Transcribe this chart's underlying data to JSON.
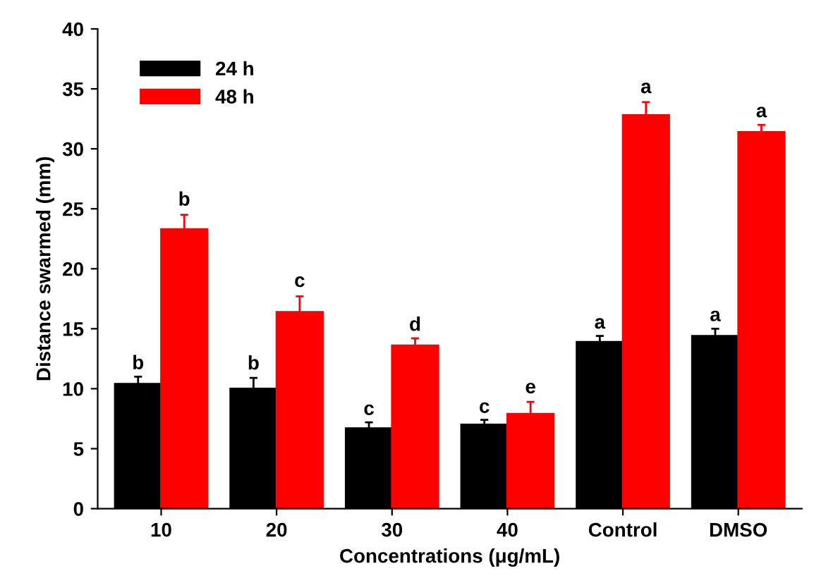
{
  "chart_data": {
    "type": "bar",
    "xlabel": "Concentrations (μg/mL)",
    "ylabel": "Distance swarmed (mm)",
    "categories": [
      "10",
      "20",
      "30",
      "40",
      "Control",
      "DMSO"
    ],
    "series": [
      {
        "name": "24 h",
        "color": "#000000",
        "values": [
          10.4,
          10.0,
          6.7,
          7.0,
          13.9,
          14.4
        ],
        "errors": [
          0.6,
          0.9,
          0.5,
          0.4,
          0.5,
          0.6
        ]
      },
      {
        "name": "48 h",
        "color": "#ff0000",
        "values": [
          23.3,
          16.4,
          13.6,
          7.9,
          32.8,
          31.4
        ],
        "errors": [
          1.2,
          1.3,
          0.6,
          1.0,
          1.1,
          0.6
        ]
      }
    ],
    "ylim": [
      0,
      40
    ],
    "yticks": [
      0,
      5,
      10,
      15,
      20,
      25,
      30,
      35,
      40
    ],
    "grid": false,
    "legend": "top left",
    "annotations": [
      {
        "text": "b",
        "x": "10",
        "y": 10.4
      },
      {
        "text": "b",
        "x": "20",
        "y": 10.0
      },
      {
        "text": "c",
        "x": "30",
        "y": 6.7
      },
      {
        "text": "c",
        "x": "40",
        "y": 7.0
      },
      {
        "text": "a",
        "x": "Control",
        "y": 13.9
      },
      {
        "text": "a",
        "x": "DMSO",
        "y": 14.4
      },
      {
        "text": "b",
        "x": "10",
        "y": 23.3
      },
      {
        "text": "c",
        "x": "20",
        "y": 16.4
      },
      {
        "text": "d",
        "x": "30",
        "y": 13.6
      },
      {
        "text": "e",
        "x": "40",
        "y": 7.9
      },
      {
        "text": "a",
        "x": "Control",
        "y": 32.8
      },
      {
        "text": "a",
        "x": "DMSO",
        "y": 31.4
      }
    ]
  }
}
